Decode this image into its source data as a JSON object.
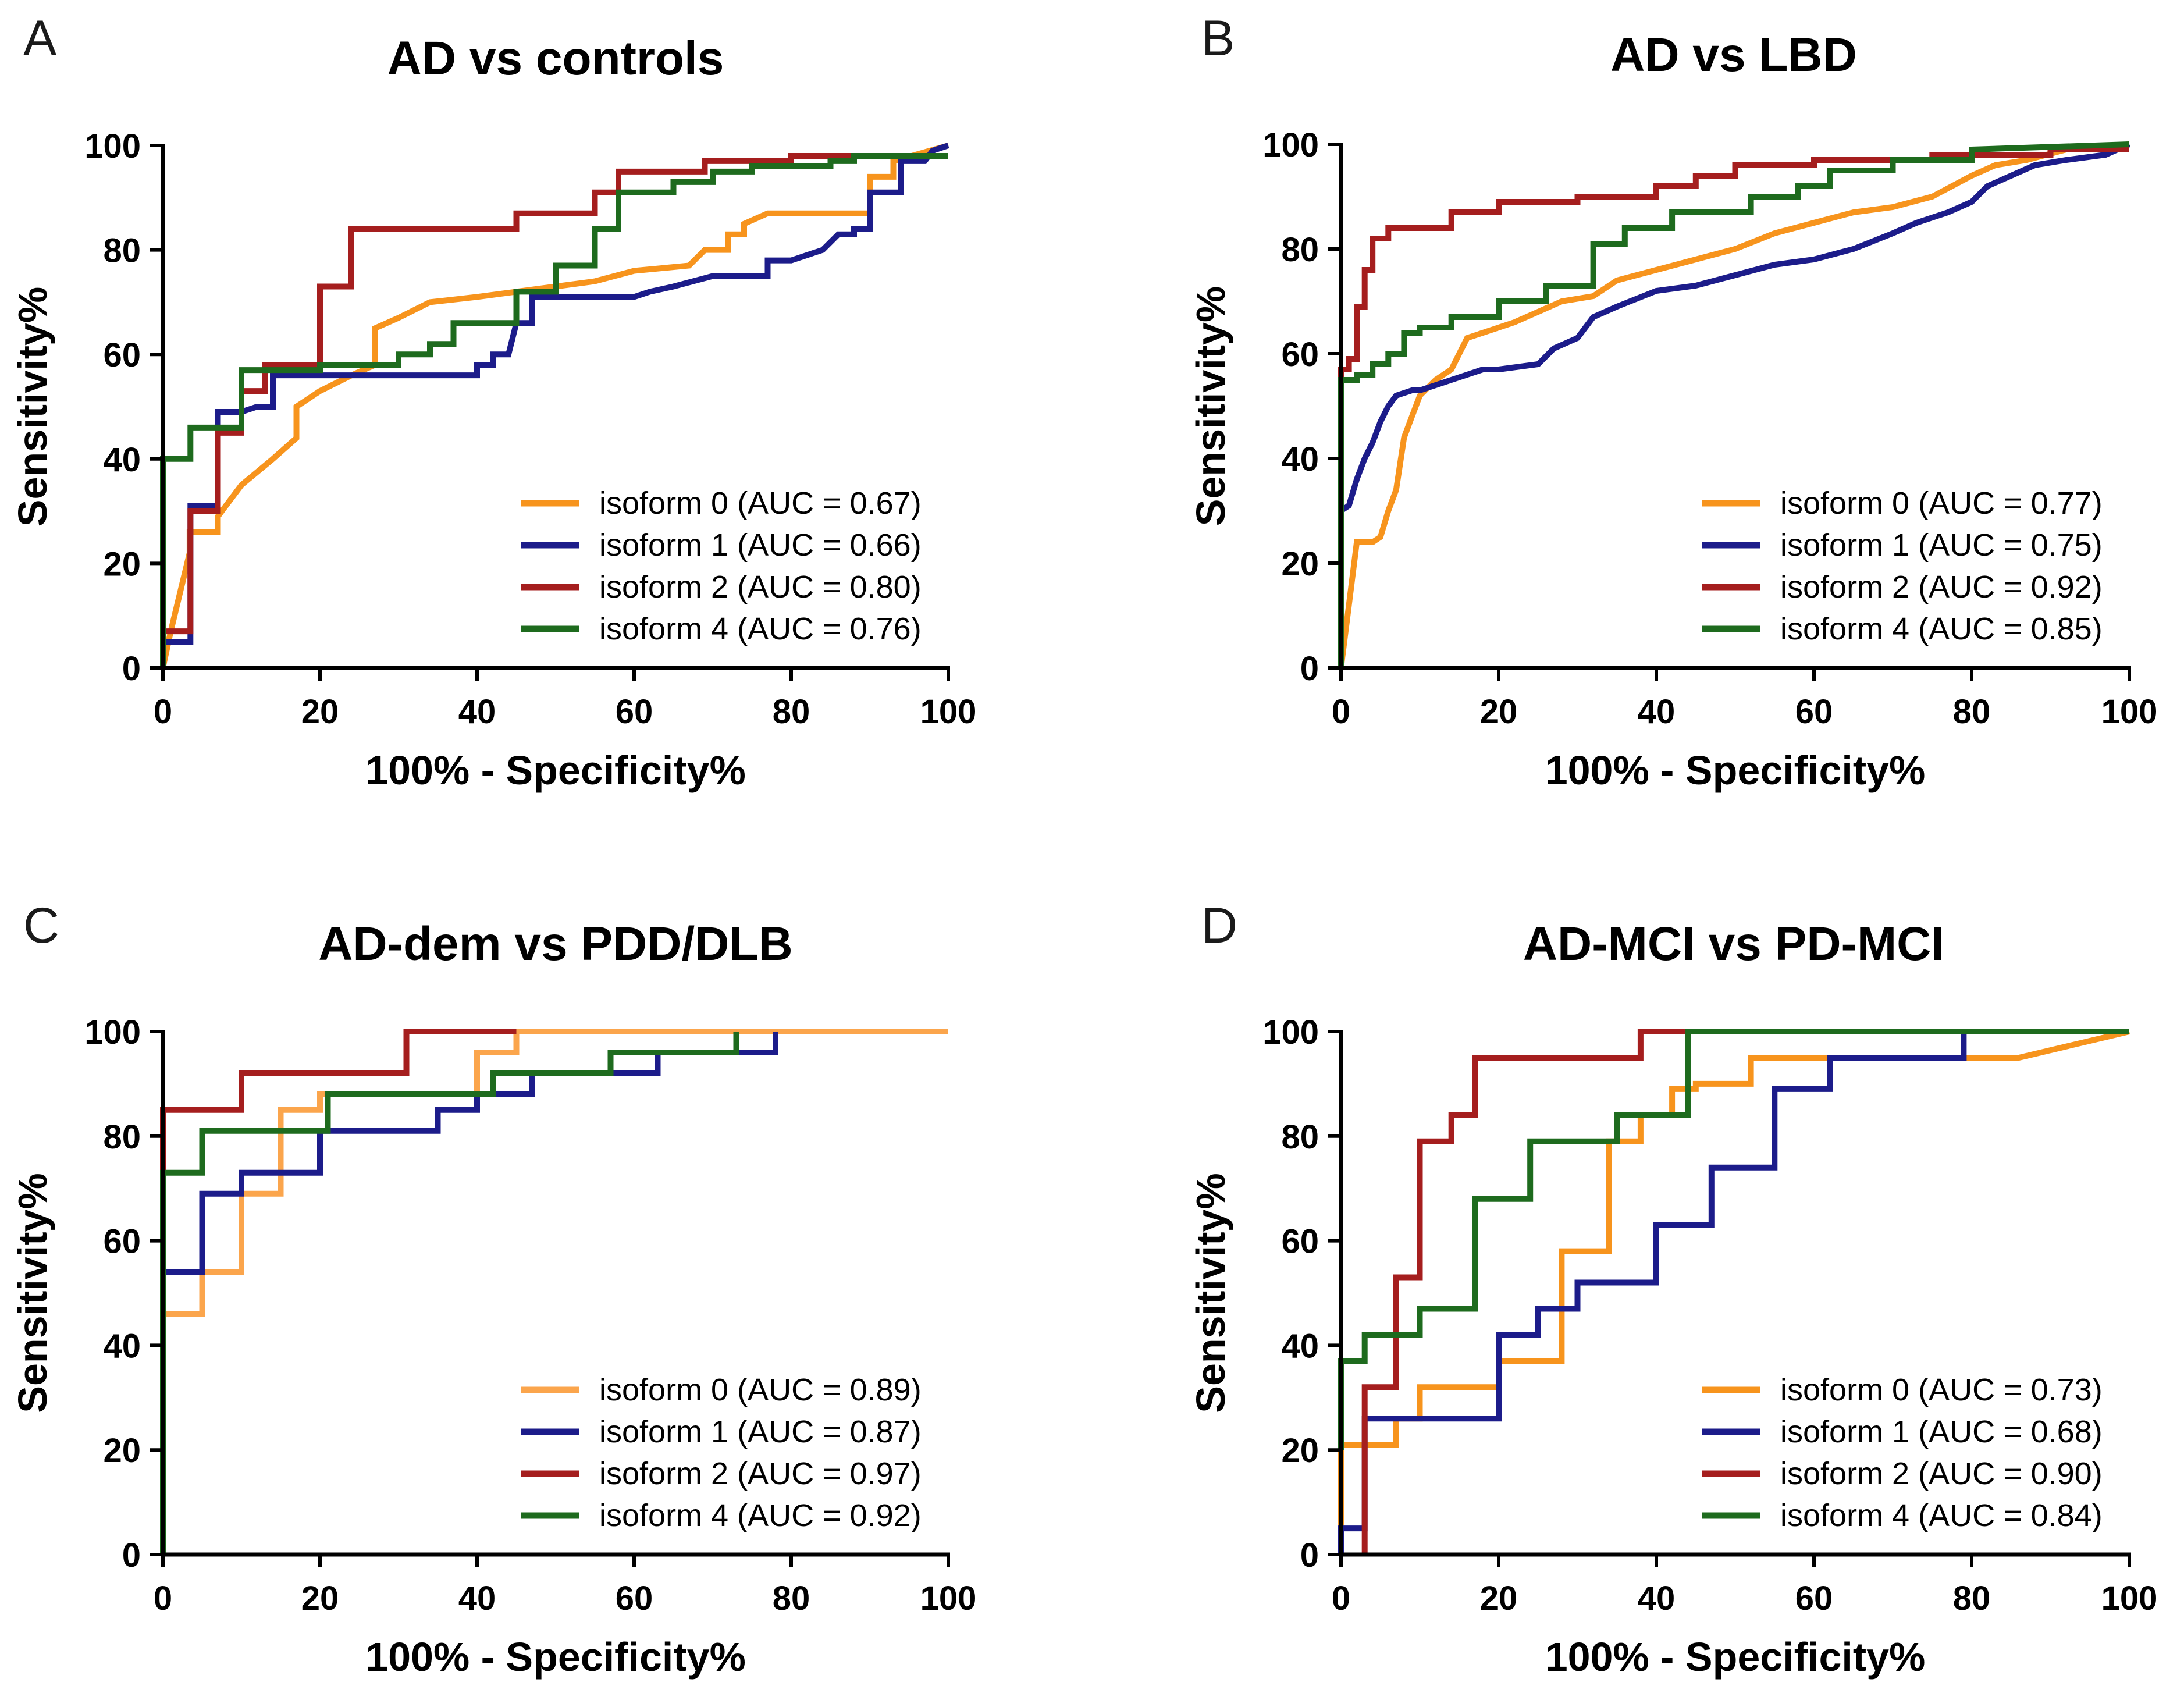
{
  "chart_data": [
    {
      "type": "line",
      "letter": "A",
      "title": "AD vs controls",
      "xlabel": "100% - Specificity%",
      "ylabel": "Sensitivity%",
      "xlim": [
        0,
        100
      ],
      "ylim": [
        0,
        100
      ],
      "xticks": [
        "0",
        "20",
        "40",
        "60",
        "80",
        "100"
      ],
      "yticks": [
        "0",
        "20",
        "40",
        "60",
        "80",
        "100"
      ],
      "legend_position": "bottom-right",
      "series": [
        {
          "name": "isoform 0 (AUC = 0.67)",
          "color": "#F7941D",
          "x": [
            0,
            1,
            3.4,
            3.4,
            7,
            7,
            10,
            14,
            17,
            17,
            20,
            24,
            27,
            27,
            30,
            34,
            40,
            45,
            50,
            55,
            60,
            67,
            69,
            69,
            72,
            72,
            74,
            74,
            77,
            80,
            90,
            90,
            93,
            93,
            100
          ],
          "y": [
            0,
            7,
            22,
            26,
            26,
            29,
            35,
            40,
            44,
            50,
            53,
            56,
            58,
            65,
            67,
            70,
            71,
            72,
            73,
            74,
            76,
            77,
            80,
            80,
            80,
            83,
            83,
            85,
            87,
            87,
            87,
            94,
            94,
            97,
            100
          ]
        },
        {
          "name": "isoform 1 (AUC = 0.66)",
          "color": "#1C1C8A",
          "x": [
            0,
            3.5,
            3.5,
            7,
            7,
            10,
            12,
            14,
            14,
            40,
            40,
            42,
            42,
            44,
            45,
            47,
            47,
            55,
            60,
            62,
            65,
            70,
            75,
            77,
            77,
            80,
            84,
            86,
            88,
            88,
            90,
            90,
            94,
            94,
            97,
            98,
            100
          ],
          "y": [
            5,
            5,
            31,
            31,
            49,
            49,
            50,
            50,
            56,
            56,
            58,
            58,
            60,
            60,
            66,
            66,
            71,
            71,
            71,
            72,
            73,
            75,
            75,
            75,
            78,
            78,
            80,
            83,
            83,
            84,
            84,
            91,
            91,
            97,
            97,
            99,
            100
          ]
        },
        {
          "name": "isoform 2 (AUC = 0.80)",
          "color": "#A51E1E",
          "x": [
            0,
            3.5,
            3.5,
            7,
            7,
            10,
            10,
            13,
            13,
            20,
            20,
            24,
            24,
            45,
            45,
            55,
            55,
            58,
            58,
            69,
            69,
            80,
            80,
            100
          ],
          "y": [
            7,
            7,
            30,
            30,
            45,
            45,
            53,
            53,
            58,
            58,
            73,
            73,
            84,
            84,
            87,
            87,
            91,
            91,
            95,
            95,
            97,
            97,
            98,
            98
          ]
        },
        {
          "name": "isoform 4 (AUC = 0.76)",
          "color": "#1E6B1E",
          "x": [
            0,
            0,
            3.5,
            3.5,
            10,
            10,
            20,
            20,
            30,
            30,
            34,
            34,
            37,
            37,
            45,
            45,
            50,
            50,
            55,
            55,
            58,
            58,
            65,
            65,
            70,
            70,
            75,
            75,
            85,
            85,
            88,
            88,
            100
          ],
          "y": [
            0,
            40,
            40,
            46,
            46,
            57,
            57,
            58,
            58,
            60,
            60,
            62,
            62,
            66,
            66,
            72,
            72,
            77,
            77,
            84,
            84,
            91,
            91,
            93,
            93,
            95,
            95,
            96,
            96,
            97,
            97,
            98,
            98
          ]
        }
      ]
    },
    {
      "type": "line",
      "letter": "B",
      "title": "AD vs LBD",
      "xlabel": "100% - Specificity%",
      "ylabel": "Sensitivity%",
      "xlim": [
        0,
        100
      ],
      "ylim": [
        0,
        100
      ],
      "xticks": [
        "0",
        "20",
        "40",
        "60",
        "80",
        "100"
      ],
      "yticks": [
        "0",
        "20",
        "40",
        "60",
        "80",
        "100"
      ],
      "legend_position": "bottom-right",
      "series": [
        {
          "name": "isoform 0 (AUC = 0.77)",
          "color": "#F7941D",
          "x": [
            0,
            1,
            2,
            3,
            4,
            5,
            6,
            7,
            8,
            9,
            10,
            12,
            14,
            16,
            18,
            20,
            22,
            25,
            28,
            32,
            35,
            40,
            45,
            50,
            55,
            60,
            65,
            70,
            75,
            80,
            83,
            87,
            92,
            100
          ],
          "y": [
            0,
            12,
            24,
            24,
            24,
            25,
            30,
            34,
            44,
            48,
            52,
            55,
            57,
            63,
            64,
            65,
            66,
            68,
            70,
            71,
            74,
            76,
            78,
            80,
            83,
            85,
            87,
            88,
            90,
            94,
            96,
            97,
            99,
            100
          ]
        },
        {
          "name": "isoform 1 (AUC = 0.75)",
          "color": "#1C1C8A",
          "x": [
            0,
            0,
            1,
            2,
            3,
            4,
            5,
            6,
            7,
            9,
            10,
            12,
            14,
            16,
            18,
            20,
            25,
            27,
            30,
            32,
            35,
            40,
            45,
            50,
            55,
            60,
            65,
            70,
            73,
            77,
            80,
            82,
            85,
            88,
            92,
            97,
            100
          ],
          "y": [
            0,
            30,
            31,
            36,
            40,
            43,
            47,
            50,
            52,
            53,
            53,
            54,
            55,
            56,
            57,
            57,
            58,
            61,
            63,
            67,
            69,
            72,
            73,
            75,
            77,
            78,
            80,
            83,
            85,
            87,
            89,
            92,
            94,
            96,
            97,
            98,
            100
          ]
        },
        {
          "name": "isoform 2 (AUC = 0.92)",
          "color": "#A51E1E",
          "x": [
            0,
            0,
            1,
            1,
            2,
            2,
            3,
            3,
            4,
            4,
            6,
            6,
            14,
            14,
            20,
            20,
            30,
            30,
            40,
            40,
            45,
            45,
            50,
            50,
            60,
            60,
            75,
            75,
            90,
            90,
            100
          ],
          "y": [
            0,
            57,
            57,
            59,
            59,
            69,
            69,
            76,
            76,
            82,
            82,
            84,
            84,
            87,
            87,
            89,
            89,
            90,
            90,
            92,
            92,
            94,
            94,
            96,
            96,
            97,
            97,
            98,
            98,
            99,
            99
          ]
        },
        {
          "name": "isoform 4 (AUC = 0.85)",
          "color": "#1E6B1E",
          "x": [
            0,
            0,
            2,
            2,
            4,
            4,
            6,
            6,
            8,
            8,
            10,
            10,
            14,
            14,
            20,
            20,
            26,
            26,
            32,
            32,
            36,
            36,
            42,
            42,
            52,
            52,
            58,
            58,
            62,
            62,
            70,
            70,
            80,
            80,
            100
          ],
          "y": [
            0,
            55,
            55,
            56,
            56,
            58,
            58,
            60,
            60,
            64,
            64,
            65,
            65,
            67,
            67,
            70,
            70,
            73,
            73,
            81,
            81,
            84,
            84,
            87,
            87,
            90,
            90,
            92,
            92,
            95,
            95,
            97,
            97,
            99,
            100
          ]
        }
      ]
    },
    {
      "type": "line",
      "letter": "C",
      "title": "AD-dem vs PDD/DLB",
      "xlabel": "100% - Specificity%",
      "ylabel": "Sensitivity%",
      "xlim": [
        0,
        100
      ],
      "ylim": [
        0,
        100
      ],
      "xticks": [
        "0",
        "20",
        "40",
        "60",
        "80",
        "100"
      ],
      "yticks": [
        "0",
        "20",
        "40",
        "60",
        "80",
        "100"
      ],
      "legend_position": "bottom-right",
      "series": [
        {
          "name": "isoform 0 (AUC = 0.89)",
          "color": "#FBA54C",
          "x": [
            0,
            0,
            5,
            5,
            10,
            10,
            15,
            15,
            20,
            20,
            40,
            40,
            45,
            45,
            50,
            50,
            100
          ],
          "y": [
            0,
            46,
            46,
            54,
            54,
            69,
            69,
            85,
            85,
            88,
            88,
            96,
            96,
            100,
            100,
            100,
            100
          ]
        },
        {
          "name": "isoform 1 (AUC = 0.87)",
          "color": "#1C1C8A",
          "x": [
            0,
            0,
            5,
            5,
            10,
            10,
            20,
            20,
            35,
            35,
            40,
            40,
            47,
            47,
            63,
            63,
            70,
            70,
            78,
            78
          ],
          "y": [
            0,
            54,
            54,
            69,
            69,
            73,
            73,
            81,
            81,
            85,
            85,
            88,
            88,
            92,
            92,
            96,
            96,
            96,
            96,
            100
          ]
        },
        {
          "name": "isoform 2 (AUC = 0.97)",
          "color": "#A51E1E",
          "x": [
            0,
            0,
            10,
            10,
            31,
            31,
            45
          ],
          "y": [
            0,
            85,
            85,
            92,
            92,
            100,
            100
          ]
        },
        {
          "name": "isoform 4 (AUC = 0.92)",
          "color": "#1E6B1E",
          "x": [
            0,
            0,
            5,
            5,
            21,
            21,
            42,
            42,
            57,
            57,
            73,
            73
          ],
          "y": [
            0,
            73,
            73,
            81,
            81,
            88,
            88,
            92,
            92,
            96,
            96,
            100
          ]
        }
      ]
    },
    {
      "type": "line",
      "letter": "D",
      "title": "AD-MCI vs PD-MCI",
      "xlabel": "100% - Specificity%",
      "ylabel": "Sensitivity%",
      "xlim": [
        0,
        100
      ],
      "ylim": [
        0,
        100
      ],
      "xticks": [
        "0",
        "20",
        "40",
        "60",
        "80",
        "100"
      ],
      "yticks": [
        "0",
        "20",
        "40",
        "60",
        "80",
        "100"
      ],
      "legend_position": "bottom-right",
      "series": [
        {
          "name": "isoform 0 (AUC = 0.73)",
          "color": "#F7941D",
          "x": [
            0,
            0,
            7,
            7,
            10,
            10,
            20,
            20,
            28,
            28,
            34,
            34,
            38,
            38,
            42,
            42,
            45,
            45,
            52,
            52,
            86,
            100
          ],
          "y": [
            0,
            21,
            21,
            26,
            26,
            32,
            32,
            37,
            37,
            58,
            58,
            79,
            79,
            84,
            84,
            89,
            89,
            90,
            90,
            95,
            95,
            100
          ]
        },
        {
          "name": "isoform 1 (AUC = 0.68)",
          "color": "#1C1C8A",
          "x": [
            0,
            0,
            3,
            3,
            7,
            7,
            20,
            20,
            25,
            25,
            30,
            30,
            40,
            40,
            47,
            47,
            55,
            55,
            62,
            62,
            79,
            79,
            100
          ],
          "y": [
            0,
            5,
            5,
            26,
            26,
            26,
            26,
            42,
            42,
            47,
            47,
            52,
            52,
            63,
            63,
            74,
            74,
            89,
            89,
            95,
            95,
            100,
            100
          ]
        },
        {
          "name": "isoform 2 (AUC = 0.90)",
          "color": "#A51E1E",
          "x": [
            3,
            3,
            7,
            7,
            10,
            10,
            14,
            14,
            17,
            17,
            30,
            30,
            38,
            38,
            100
          ],
          "y": [
            0,
            32,
            32,
            53,
            53,
            79,
            79,
            84,
            84,
            95,
            95,
            95,
            95,
            100,
            100
          ]
        },
        {
          "name": "isoform 4 (AUC = 0.84)",
          "color": "#1E6B1E",
          "x": [
            0,
            0,
            3,
            3,
            10,
            10,
            17,
            17,
            24,
            24,
            35,
            35,
            40,
            40,
            44,
            44,
            100
          ],
          "y": [
            20,
            37,
            37,
            42,
            42,
            47,
            47,
            68,
            68,
            79,
            79,
            84,
            84,
            84,
            84,
            100,
            100
          ]
        }
      ]
    }
  ]
}
